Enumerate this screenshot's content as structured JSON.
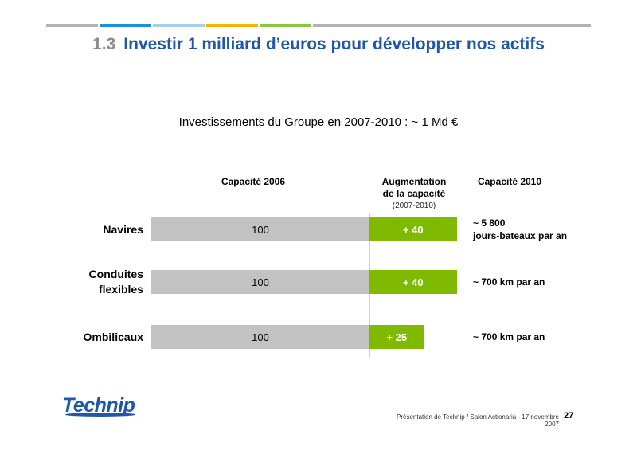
{
  "top_bar_colors": [
    "#b3b3b3",
    "#1f8de0",
    "#a8cfee",
    "#f3b600",
    "#8cc63f",
    "#b3b3b3"
  ],
  "slide_title": {
    "number": "1.3",
    "text": "Investir 1 milliard d’euros pour développer nos actifs"
  },
  "chart_data": {
    "type": "bar",
    "orientation": "horizontal",
    "stacked": true,
    "title": "Investissements du Groupe en 2007-2010 : ~ 1 Md €",
    "column_headers": {
      "base": "Capacité 2006",
      "increase": "Augmentation",
      "increase_line2": "de la capacité",
      "increase_sub": "(2007-2010)",
      "result": "Capacité 2010"
    },
    "categories": [
      "Navires",
      "Conduites flexibles",
      "Ombilicaux"
    ],
    "category_lines": [
      [
        "Navires"
      ],
      [
        "Conduites",
        "flexibles"
      ],
      [
        "Ombilicaux"
      ]
    ],
    "series": [
      {
        "name": "Capacité 2006",
        "values": [
          100,
          100,
          100
        ],
        "labels": [
          "100",
          "100",
          "100"
        ],
        "color": "#c2c2c2"
      },
      {
        "name": "Augmentation de la capacité",
        "values": [
          40,
          40,
          25
        ],
        "labels": [
          "+ 40",
          "+ 40",
          "+ 25"
        ],
        "color": "#7fba00"
      }
    ],
    "result_labels": [
      [
        "~ 5 800",
        "jours-bateaux par an"
      ],
      [
        "~ 700 km par an"
      ],
      [
        "~ 700 km par an"
      ]
    ]
  },
  "logo": {
    "text": "Technip"
  },
  "footer": {
    "text": "Présentation de Technip / Salon Actionaria - 17 novembre 2007",
    "page": "27"
  }
}
